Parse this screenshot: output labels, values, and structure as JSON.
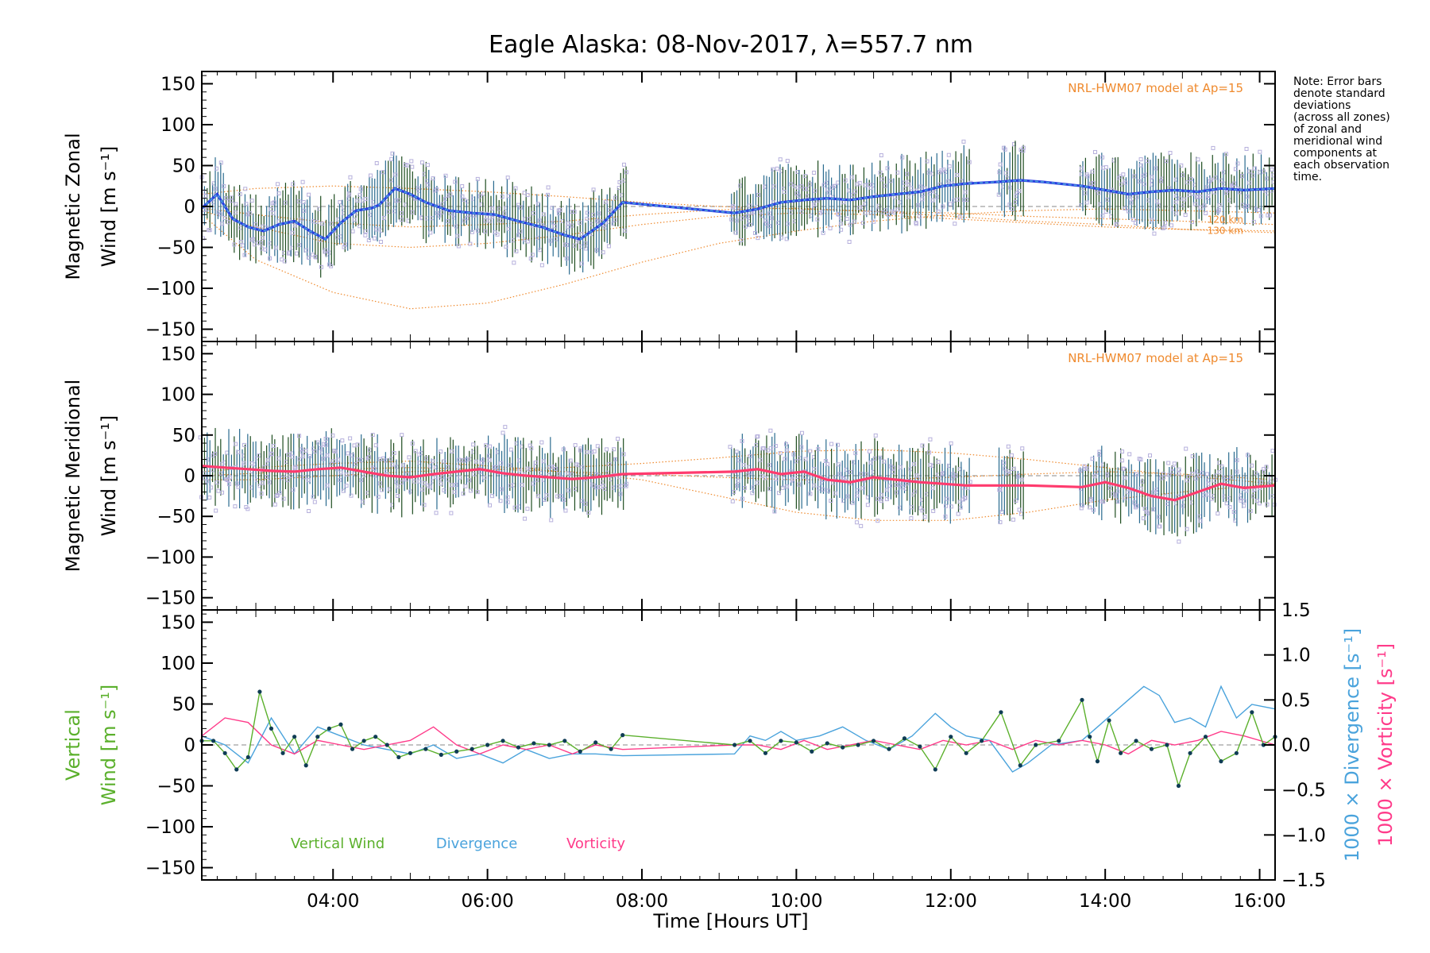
{
  "title": "Eagle Alaska: 08-Nov-2017, λ=557.7 nm",
  "xlabel": "Time [Hours UT]",
  "note_lines": [
    "Note: Error bars",
    "denote standard",
    "deviations",
    "(across all zones)",
    "of zonal and",
    "meridional wind",
    "components at",
    "each observation",
    "time."
  ],
  "colors": {
    "zonal": "#2a3fe0",
    "zonal_mean": "#4aa3dc",
    "meridional": "#ff3b6e",
    "model": "#ef8a2e",
    "points": "#b6b0dc",
    "vertical": "#5bb02c",
    "divergence": "#4aa3dc",
    "vorticity": "#ff3b8a",
    "vertical_marker": "#0f3c55",
    "errorbar_a": "#1e4d20",
    "errorbar_b": "#2a6b8f"
  },
  "chart_data": [
    {
      "type": "line",
      "panel": "zonal",
      "ylabel_lines": [
        "Magnetic Zonal",
        "Wind [m s⁻¹]"
      ],
      "model_label": "NRL-HWM07 model at Ap=15",
      "model_height_labels": [
        "120 km",
        "130 km"
      ],
      "xlim": [
        2.3,
        16.2
      ],
      "ylim": [
        -165,
        165
      ],
      "yticks": [
        -150,
        -100,
        -50,
        0,
        50,
        100,
        150
      ],
      "series": [
        {
          "name": "zonal",
          "x": [
            2.3,
            2.5,
            2.7,
            2.9,
            3.1,
            3.3,
            3.5,
            3.7,
            3.9,
            4.1,
            4.3,
            4.5,
            4.6,
            4.8,
            5.0,
            5.2,
            5.5,
            5.8,
            6.1,
            6.4,
            6.7,
            7.0,
            7.2,
            7.5,
            7.75,
            9.2,
            9.5,
            9.8,
            10.1,
            10.4,
            10.7,
            11.0,
            11.3,
            11.6,
            11.9,
            12.2,
            12.6,
            12.9,
            13.2,
            13.7,
            14.0,
            14.3,
            14.6,
            14.9,
            15.2,
            15.5,
            15.8,
            16.2
          ],
          "y": [
            -2,
            15,
            -15,
            -25,
            -30,
            -22,
            -18,
            -30,
            -40,
            -20,
            -5,
            -2,
            2,
            22,
            15,
            5,
            -5,
            -8,
            -10,
            -18,
            -25,
            -35,
            -40,
            -20,
            5,
            -8,
            -3,
            5,
            8,
            10,
            8,
            12,
            15,
            18,
            25,
            28,
            30,
            32,
            30,
            25,
            20,
            15,
            18,
            20,
            18,
            22,
            20,
            22
          ]
        },
        {
          "name": "model",
          "x": [
            2.3,
            3.0,
            4.0,
            5.0,
            6.0,
            7.0,
            8.0,
            9.0,
            10.0,
            11.0,
            12.0,
            13.0,
            14.0,
            15.0,
            16.2
          ],
          "y": [
            -10,
            -65,
            -105,
            -125,
            -118,
            -95,
            -68,
            -45,
            -30,
            -18,
            -10,
            -5,
            -3,
            -5,
            -8
          ]
        },
        {
          "name": "model",
          "x": [
            2.3,
            3.0,
            4.0,
            5.0,
            6.0,
            7.0,
            8.0,
            9.0,
            10.0,
            11.0,
            12.0,
            13.0,
            14.0,
            15.0,
            16.2
          ],
          "y": [
            -5,
            -25,
            -45,
            -50,
            -45,
            -35,
            -22,
            -12,
            -8,
            -10,
            -15,
            -20,
            -25,
            -28,
            -30
          ]
        },
        {
          "name": "model",
          "x": [
            2.3,
            3.0,
            4.0,
            5.0,
            6.0,
            7.0,
            8.0,
            9.0,
            10.0,
            11.0,
            12.0,
            13.0,
            14.0,
            15.0,
            16.2
          ],
          "y": [
            15,
            22,
            25,
            22,
            18,
            12,
            5,
            0,
            -3,
            -6,
            -8,
            -12,
            -15,
            -18,
            -22
          ]
        },
        {
          "name": "model",
          "x": [
            2.3,
            3.0,
            4.0,
            5.0,
            6.0,
            7.0,
            8.0,
            9.0,
            10.0,
            11.0,
            12.0,
            13.0,
            14.0,
            15.0,
            16.2
          ],
          "y": [
            -2,
            -10,
            -20,
            -25,
            -22,
            -18,
            -10,
            -4,
            -2,
            -6,
            -12,
            -18,
            -22,
            -28,
            -32
          ]
        }
      ]
    },
    {
      "type": "line",
      "panel": "meridional",
      "ylabel_lines": [
        "Magnetic Meridional",
        "Wind [m s⁻¹]"
      ],
      "model_label": "NRL-HWM07 model at Ap=15",
      "xlim": [
        2.3,
        16.2
      ],
      "ylim": [
        -165,
        165
      ],
      "yticks": [
        -150,
        -100,
        -50,
        0,
        50,
        100,
        150
      ],
      "series": [
        {
          "name": "meridional",
          "x": [
            2.3,
            2.6,
            2.9,
            3.2,
            3.5,
            3.8,
            4.1,
            4.4,
            4.7,
            5.0,
            5.3,
            5.6,
            5.9,
            6.2,
            6.5,
            6.8,
            7.1,
            7.4,
            7.75,
            9.2,
            9.5,
            9.8,
            10.1,
            10.4,
            10.7,
            11.0,
            11.3,
            11.6,
            11.9,
            12.2,
            12.6,
            13.0,
            13.7,
            14.0,
            14.3,
            14.6,
            14.9,
            15.2,
            15.5,
            15.8,
            16.2
          ],
          "y": [
            12,
            10,
            8,
            6,
            5,
            8,
            10,
            5,
            0,
            -2,
            2,
            5,
            8,
            3,
            0,
            -2,
            -4,
            -2,
            2,
            5,
            8,
            2,
            5,
            -5,
            -8,
            -2,
            -5,
            -8,
            -10,
            -12,
            -12,
            -12,
            -14,
            -8,
            -15,
            -25,
            -30,
            -20,
            -10,
            -15,
            -12
          ]
        },
        {
          "name": "model",
          "x": [
            2.3,
            3.0,
            4.0,
            5.0,
            6.0,
            7.0,
            8.0,
            9.0,
            10.0,
            11.0,
            12.0,
            13.0,
            14.0,
            15.0,
            16.2
          ],
          "y": [
            5,
            10,
            15,
            18,
            12,
            5,
            -5,
            -25,
            -45,
            -55,
            -55,
            -45,
            -30,
            -20,
            -10
          ]
        },
        {
          "name": "model",
          "x": [
            2.3,
            3.0,
            4.0,
            5.0,
            6.0,
            7.0,
            8.0,
            9.0,
            10.0,
            11.0,
            12.0,
            13.0,
            14.0,
            15.0,
            16.2
          ],
          "y": [
            -5,
            -5,
            0,
            5,
            8,
            10,
            15,
            22,
            30,
            32,
            28,
            20,
            10,
            0,
            -10
          ]
        },
        {
          "name": "model",
          "x": [
            2.3,
            3.0,
            4.0,
            5.0,
            6.0,
            7.0,
            8.0,
            9.0,
            10.0,
            11.0,
            12.0,
            13.0,
            14.0,
            15.0,
            16.2
          ],
          "y": [
            0,
            3,
            8,
            10,
            8,
            5,
            2,
            -2,
            -5,
            -5,
            -2,
            2,
            5,
            2,
            -5
          ]
        }
      ]
    },
    {
      "type": "line",
      "panel": "vertical",
      "ylabel_lines": [
        "Vertical",
        "Wind [m s⁻¹]"
      ],
      "right_axis_labels": [
        "1000 × Divergence [s⁻¹]",
        "1000 × Vorticity [s⁻¹]"
      ],
      "legend": [
        "Vertical Wind",
        "Divergence",
        "Vorticity"
      ],
      "xlim": [
        2.3,
        16.2
      ],
      "ylim": [
        -165,
        165
      ],
      "y2lim": [
        -1.5,
        1.5
      ],
      "yticks": [
        -150,
        -100,
        -50,
        0,
        50,
        100,
        150
      ],
      "y2ticks": [
        -1.5,
        -1.0,
        -0.5,
        0.0,
        0.5,
        1.0,
        1.5
      ],
      "xticks": [
        "04:00",
        "06:00",
        "08:00",
        "10:00",
        "12:00",
        "14:00",
        "16:00"
      ],
      "xtick_values": [
        4,
        6,
        8,
        10,
        12,
        14,
        16
      ],
      "series": [
        {
          "name": "Vertical Wind",
          "x": [
            2.3,
            2.45,
            2.6,
            2.75,
            2.9,
            3.05,
            3.2,
            3.35,
            3.5,
            3.65,
            3.8,
            3.95,
            4.1,
            4.25,
            4.4,
            4.55,
            4.7,
            4.85,
            5.0,
            5.2,
            5.4,
            5.6,
            5.8,
            6.0,
            6.2,
            6.4,
            6.6,
            6.8,
            7.0,
            7.2,
            7.4,
            7.6,
            7.75,
            9.2,
            9.4,
            9.6,
            9.8,
            10.0,
            10.2,
            10.4,
            10.6,
            10.8,
            11.0,
            11.2,
            11.4,
            11.6,
            11.8,
            12.0,
            12.2,
            12.4,
            12.65,
            12.9,
            13.1,
            13.4,
            13.7,
            13.8,
            13.9,
            14.05,
            14.2,
            14.4,
            14.6,
            14.8,
            14.95,
            15.1,
            15.3,
            15.5,
            15.7,
            15.9,
            16.05,
            16.2
          ],
          "y": [
            5,
            5,
            -10,
            -30,
            -15,
            65,
            20,
            -10,
            10,
            -25,
            10,
            20,
            25,
            -5,
            5,
            10,
            0,
            -15,
            -10,
            -5,
            -12,
            -8,
            -5,
            0,
            5,
            -3,
            2,
            0,
            5,
            -8,
            3,
            -5,
            12,
            0,
            5,
            -10,
            5,
            3,
            -8,
            2,
            -3,
            0,
            5,
            -5,
            8,
            -2,
            -30,
            10,
            -10,
            5,
            40,
            -25,
            0,
            5,
            55,
            10,
            -20,
            30,
            -10,
            5,
            -5,
            0,
            -50,
            -10,
            10,
            -20,
            -10,
            40,
            0,
            10
          ]
        },
        {
          "name": "Divergence",
          "x": [
            2.3,
            2.6,
            2.9,
            3.2,
            3.5,
            3.8,
            4.1,
            4.4,
            4.7,
            5.0,
            5.3,
            5.6,
            5.9,
            6.2,
            6.5,
            6.8,
            7.1,
            7.4,
            7.75,
            9.2,
            9.4,
            9.6,
            9.8,
            10.0,
            10.3,
            10.6,
            10.9,
            11.2,
            11.5,
            11.8,
            12.0,
            12.2,
            12.5,
            12.8,
            13.0,
            13.3,
            13.7,
            13.9,
            14.1,
            14.3,
            14.5,
            14.7,
            14.9,
            15.1,
            15.3,
            15.5,
            15.7,
            15.9,
            16.2
          ],
          "y": [
            0.1,
            0.0,
            -0.2,
            0.3,
            -0.1,
            0.2,
            0.1,
            0.0,
            -0.05,
            -0.1,
            0.0,
            -0.15,
            -0.1,
            -0.2,
            -0.05,
            -0.15,
            -0.1,
            -0.1,
            -0.12,
            -0.1,
            0.1,
            0.05,
            0.15,
            0.05,
            0.1,
            0.2,
            0.05,
            -0.05,
            0.1,
            0.35,
            0.2,
            0.1,
            0.05,
            -0.3,
            -0.2,
            0.0,
            0.05,
            0.2,
            0.35,
            0.5,
            0.65,
            0.55,
            0.25,
            0.3,
            0.2,
            0.65,
            0.3,
            0.45,
            0.4
          ]
        },
        {
          "name": "Vorticity",
          "x": [
            2.3,
            2.6,
            2.9,
            3.2,
            3.5,
            3.8,
            4.1,
            4.4,
            4.7,
            5.0,
            5.3,
            5.6,
            5.9,
            6.2,
            6.5,
            6.8,
            7.1,
            7.4,
            7.75,
            9.2,
            9.5,
            9.8,
            10.1,
            10.4,
            10.7,
            11.0,
            11.3,
            11.6,
            11.9,
            12.2,
            12.5,
            12.8,
            13.1,
            13.4,
            13.7,
            14.0,
            14.3,
            14.6,
            14.9,
            15.2,
            15.5,
            15.8,
            16.2
          ],
          "y": [
            0.1,
            0.3,
            0.25,
            0.0,
            -0.1,
            0.05,
            0.0,
            -0.05,
            0.0,
            0.05,
            0.2,
            0.0,
            -0.1,
            0.0,
            -0.05,
            0.0,
            -0.1,
            0.0,
            -0.05,
            0.0,
            0.0,
            -0.05,
            0.05,
            -0.05,
            0.0,
            0.05,
            0.0,
            -0.05,
            0.05,
            0.0,
            0.05,
            -0.05,
            0.05,
            0.0,
            0.05,
            0.0,
            -0.1,
            0.05,
            0.0,
            0.05,
            0.15,
            0.1,
            0.0
          ]
        }
      ]
    }
  ]
}
